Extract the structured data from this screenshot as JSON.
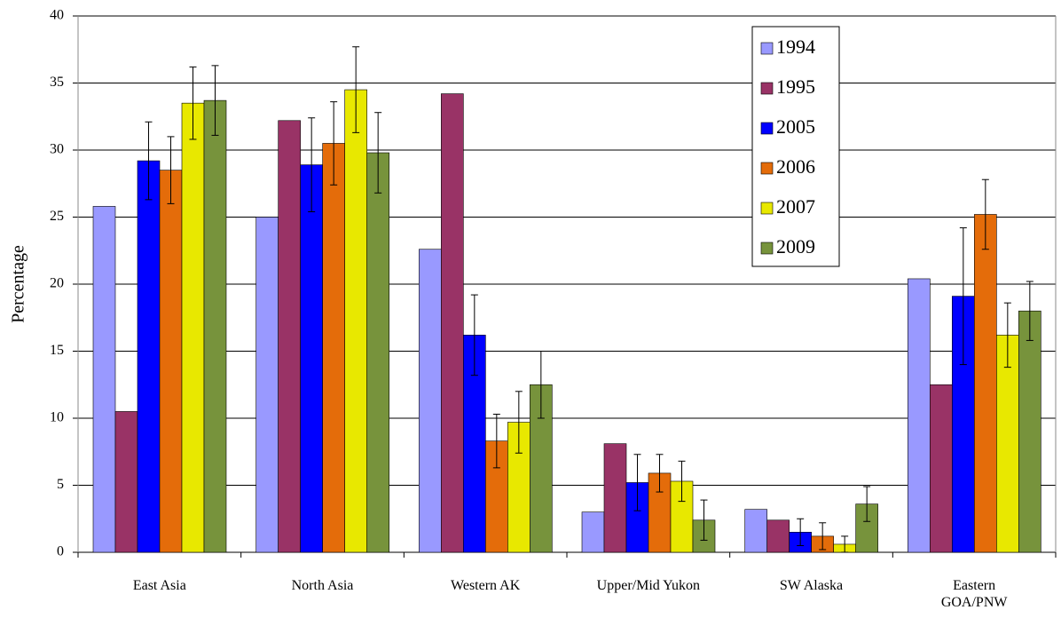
{
  "chart_data": {
    "type": "bar",
    "y_label": "Percentage",
    "categories": [
      "East Asia",
      "North Asia",
      "Western AK",
      "Upper/Mid Yukon",
      "SW Alaska",
      "Eastern\nGOA/PNW"
    ],
    "ylim": [
      0,
      40
    ],
    "yticks": [
      0,
      5,
      10,
      15,
      20,
      25,
      30,
      35,
      40
    ],
    "grid": true,
    "legend": "top-right",
    "series": [
      {
        "name": "1994",
        "color": "#9999ff",
        "values": [
          25.8,
          25.0,
          22.6,
          3.0,
          3.2,
          20.4
        ]
      },
      {
        "name": "1995",
        "color": "#993366",
        "values": [
          10.5,
          32.2,
          34.2,
          8.1,
          2.4,
          12.5
        ]
      },
      {
        "name": "2005",
        "color": "#0000ff",
        "values": [
          29.2,
          28.9,
          16.2,
          5.2,
          1.5,
          19.1
        ],
        "errors": [
          2.9,
          3.5,
          3.0,
          2.1,
          1.0,
          5.1
        ]
      },
      {
        "name": "2006",
        "color": "#e46c0a",
        "values": [
          28.5,
          30.5,
          8.3,
          5.9,
          1.2,
          25.2
        ],
        "errors": [
          2.5,
          3.1,
          2.0,
          1.4,
          1.0,
          2.6
        ]
      },
      {
        "name": "2007",
        "color": "#e8e800",
        "values": [
          33.5,
          34.5,
          9.7,
          5.3,
          0.6,
          16.2
        ],
        "errors": [
          2.7,
          3.2,
          2.3,
          1.5,
          0.6,
          2.4
        ]
      },
      {
        "name": "2009",
        "color": "#77933c",
        "values": [
          33.7,
          29.8,
          12.5,
          2.4,
          3.6,
          18.0
        ],
        "errors": [
          2.6,
          3.0,
          2.5,
          1.5,
          1.3,
          2.2
        ]
      }
    ]
  }
}
